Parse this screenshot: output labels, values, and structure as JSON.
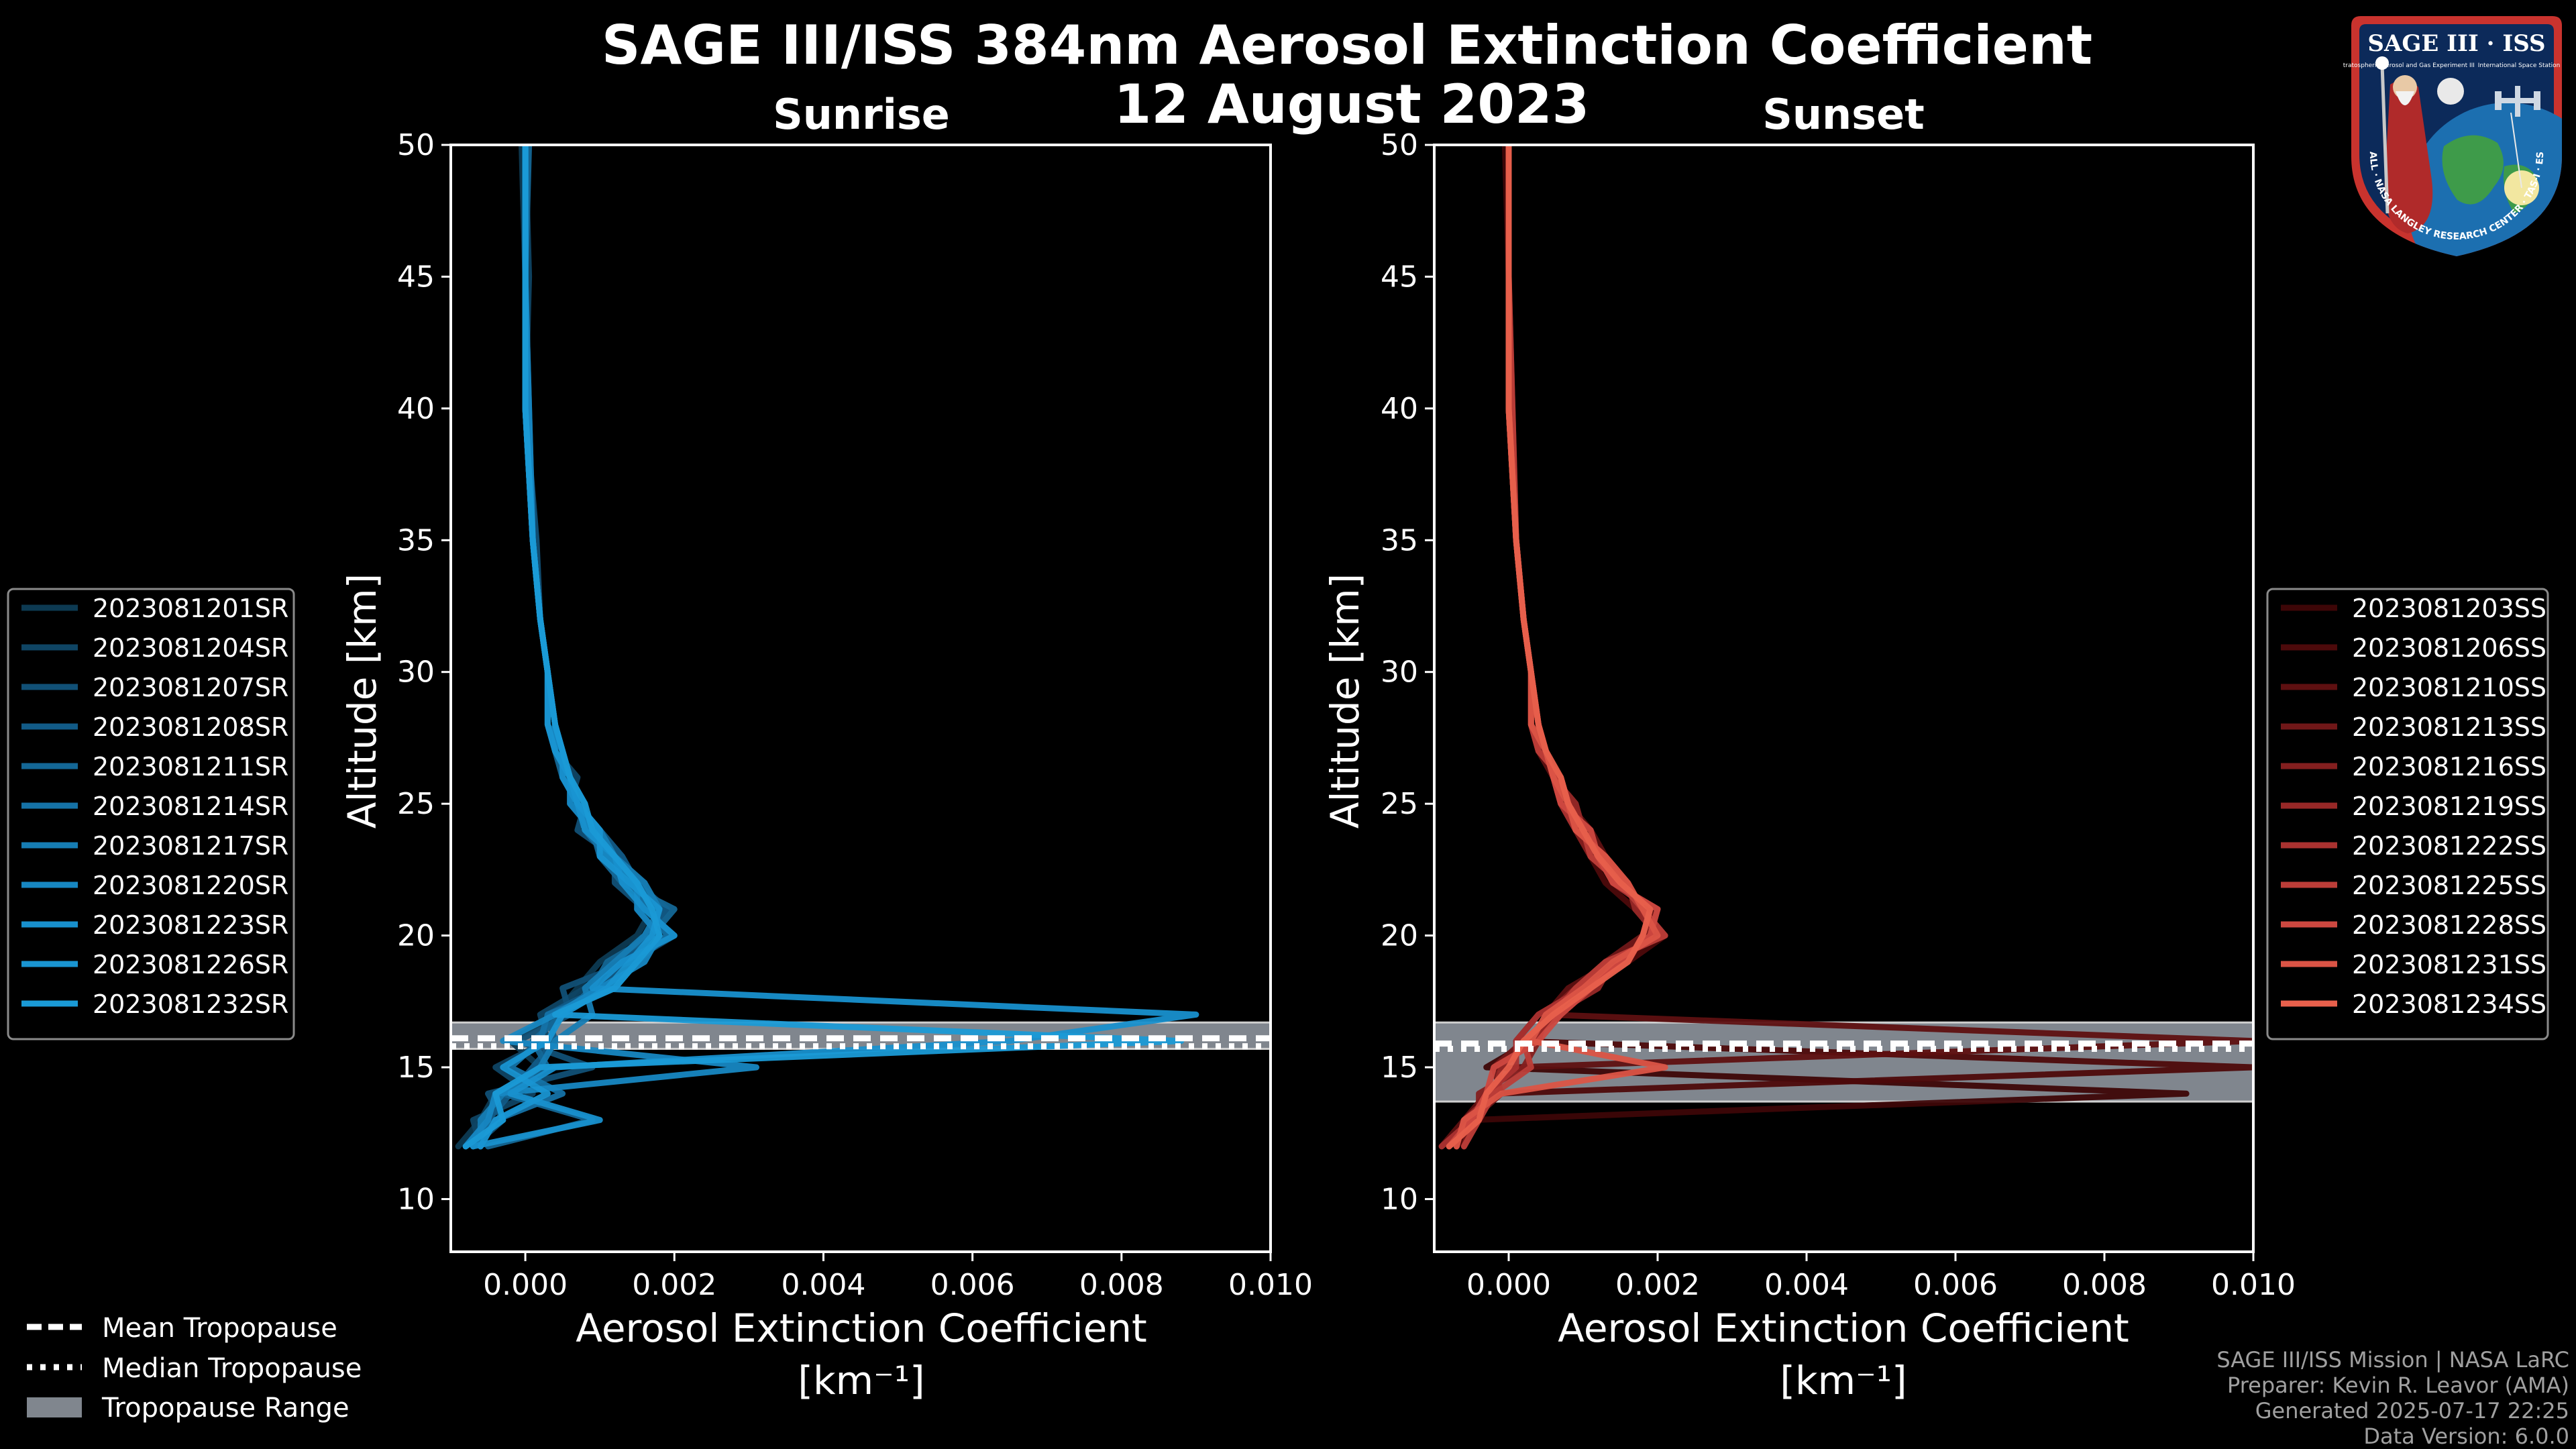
{
  "title": {
    "line1": "SAGE III/ISS 384nm Aerosol Extinction Coefficient",
    "line2": "12 August 2023"
  },
  "logo": {
    "name": "SAGE III · ISS",
    "subtitle": "Stratospheric Aerosol and Gas Experiment III",
    "ring_text": "BALL · NASA LANGLEY RESEARCH CENTER · TAS-I · ESA",
    "station_text": "International Space Station"
  },
  "footer": {
    "mission": "SAGE III/ISS Mission | NASA LaRC",
    "preparer": "Preparer: Kevin R. Leavor (AMA)",
    "generated": "Generated 2025-07-17 22:25",
    "version": "Data Version: 6.0.0"
  },
  "tropopause_legend": {
    "mean": "Mean Tropopause",
    "median": "Median Tropopause",
    "range": "Tropopause Range"
  },
  "colors": {
    "sunrise": "#1a9ad6",
    "sunset": "#e8604c",
    "background": "#000000",
    "range_fill": "#80868e"
  },
  "chart_data": [
    {
      "type": "line",
      "title": "Sunrise",
      "xlabel": "Aerosol Extinction Coefficient",
      "xunit": "[km⁻¹]",
      "ylabel": "Altitude [km]",
      "xlim": [
        -0.001,
        0.01
      ],
      "ylim": [
        8,
        50
      ],
      "xticks": [
        0.0,
        0.002,
        0.004,
        0.006,
        0.008,
        0.01
      ],
      "xtick_labels": [
        "0.000",
        "0.002",
        "0.004",
        "0.006",
        "0.008",
        "0.010"
      ],
      "yticks": [
        10,
        15,
        20,
        25,
        30,
        35,
        40,
        45,
        50
      ],
      "ytick_labels": [
        "10",
        "15",
        "20",
        "25",
        "30",
        "35",
        "40",
        "45",
        "50"
      ],
      "tropopause": {
        "mean": 16.1,
        "median": 15.8,
        "range": [
          15.7,
          16.7
        ]
      },
      "altitudes": [
        12,
        13,
        14,
        15,
        16,
        17,
        18,
        19,
        20,
        21,
        22,
        23,
        24,
        25,
        26,
        27,
        28,
        30,
        32,
        35,
        40,
        45,
        50
      ],
      "series": [
        {
          "name": "2023081201SR",
          "color": "#0d3a52",
          "values": [
            -0.0009,
            -0.0006,
            -0.0004,
            0.0002,
            -0.0002,
            0.0004,
            0.0007,
            0.001,
            0.0015,
            0.0017,
            0.0014,
            0.0011,
            0.0008,
            0.0007,
            0.0006,
            0.0005,
            0.0004,
            0.0003,
            0.0002,
            0.0001,
            0.0,
            0.0,
            -5e-05
          ]
        },
        {
          "name": "2023081204SR",
          "color": "#0f4564",
          "values": [
            -0.0006,
            -0.0007,
            0.0001,
            -0.0004,
            0.0003,
            0.0002,
            0.0008,
            0.0012,
            0.0018,
            0.0015,
            0.0016,
            0.001,
            0.0009,
            0.0006,
            0.0007,
            0.0004,
            0.0003,
            0.0003,
            0.0002,
            0.0001,
            0.0,
            5e-05,
            0.0
          ]
        },
        {
          "name": "2023081207SR",
          "color": "#115076",
          "values": [
            -0.0007,
            -0.0003,
            -0.0005,
            0.0009,
            -0.0001,
            0.0006,
            0.0005,
            0.0014,
            0.002,
            0.0016,
            0.0012,
            0.0012,
            0.0007,
            0.0008,
            0.0005,
            0.0005,
            0.0004,
            0.0003,
            0.0002,
            0.00015,
            0.0,
            0.0,
            0.0
          ]
        },
        {
          "name": "2023081208SR",
          "color": "#125b87",
          "values": [
            -0.0008,
            -0.0005,
            -0.0002,
            0.0001,
            0.0004,
            0.0003,
            0.001,
            0.0013,
            0.0016,
            0.0019,
            0.0015,
            0.0013,
            0.001,
            0.0006,
            0.0006,
            0.0005,
            0.0004,
            0.0003,
            0.0002,
            0.0001,
            5e-05,
            0.0,
            0.0
          ]
        },
        {
          "name": "2023081211SR",
          "color": "#146796",
          "values": [
            -0.0005,
            0.0009,
            -0.0003,
            0.0003,
            0.0001,
            0.0005,
            0.0009,
            0.0011,
            0.0017,
            0.002,
            0.0013,
            0.001,
            0.0009,
            0.0007,
            0.0005,
            0.0004,
            0.0003,
            0.0003,
            0.0002,
            0.0001,
            0.0,
            0.0,
            5e-05
          ]
        },
        {
          "name": "2023081214SR",
          "color": "#1572a6",
          "values": [
            -0.0007,
            -0.0004,
            0.0005,
            -0.0002,
            0.0002,
            0.0003,
            0.0012,
            0.0015,
            0.0019,
            0.0017,
            0.0014,
            0.0011,
            0.0008,
            0.0008,
            0.0006,
            0.0005,
            0.0004,
            0.0003,
            0.0002,
            0.0001,
            0.0,
            0.0,
            0.0
          ]
        },
        {
          "name": "2023081217SR",
          "color": "#167db4",
          "values": [
            -0.0006,
            -0.0006,
            -0.0003,
            0.0002,
            0.0004,
            0.0009,
            0.0008,
            0.0012,
            0.0016,
            0.0018,
            0.0016,
            0.0012,
            0.001,
            0.0007,
            0.0006,
            0.0005,
            0.0003,
            0.0003,
            0.0002,
            0.0001,
            0.0,
            0.0,
            0.0
          ]
        },
        {
          "name": "2023081220SR",
          "color": "#1787c2",
          "values": [
            -0.0008,
            -0.0005,
            -0.0004,
            0.0031,
            -0.0003,
            0.0004,
            0.001,
            0.0016,
            0.0018,
            0.0015,
            0.0015,
            0.0011,
            0.0009,
            0.0006,
            0.0006,
            0.0004,
            0.0004,
            0.0003,
            0.0002,
            0.0001,
            5e-05,
            0.0,
            0.0
          ]
        },
        {
          "name": "2023081223SR",
          "color": "#1890cd",
          "values": [
            -0.0007,
            0.001,
            -0.0002,
            0.0004,
            0.0065,
            0.009,
            0.0009,
            0.0013,
            0.002,
            0.0016,
            0.0013,
            0.0012,
            0.0008,
            0.0007,
            0.0005,
            0.0005,
            0.0004,
            0.0003,
            0.0002,
            0.0001,
            0.0,
            0.0,
            0.0
          ]
        },
        {
          "name": "2023081226SR",
          "color": "#1995d2",
          "values": [
            -0.0006,
            -0.0004,
            0.0003,
            -0.0003,
            0.0003,
            0.0005,
            0.0011,
            0.0014,
            0.0017,
            0.0018,
            0.0014,
            0.001,
            0.001,
            0.0007,
            0.0006,
            0.0004,
            0.0003,
            0.0003,
            0.0002,
            0.0001,
            0.0,
            0.0,
            0.0
          ]
        },
        {
          "name": "2023081232SR",
          "color": "#1a9ad6",
          "values": [
            -0.0008,
            -0.0003,
            -0.0004,
            0.0002,
            0.0088,
            0.0004,
            0.0012,
            0.0015,
            0.0018,
            0.0017,
            0.0015,
            0.0012,
            0.0009,
            0.0008,
            0.0006,
            0.0005,
            0.0004,
            0.0003,
            0.0002,
            0.0001,
            0.0,
            0.0,
            0.0
          ]
        }
      ]
    },
    {
      "type": "line",
      "title": "Sunset",
      "xlabel": "Aerosol Extinction Coefficient",
      "xunit": "[km⁻¹]",
      "ylabel": "Altitude [km]",
      "xlim": [
        -0.001,
        0.01
      ],
      "ylim": [
        8,
        50
      ],
      "xticks": [
        0.0,
        0.002,
        0.004,
        0.006,
        0.008,
        0.01
      ],
      "xtick_labels": [
        "0.000",
        "0.002",
        "0.004",
        "0.006",
        "0.008",
        "0.010"
      ],
      "yticks": [
        10,
        15,
        20,
        25,
        30,
        35,
        40,
        45,
        50
      ],
      "ytick_labels": [
        "10",
        "15",
        "20",
        "25",
        "30",
        "35",
        "40",
        "45",
        "50"
      ],
      "tropopause": {
        "mean": 15.9,
        "median": 15.7,
        "range": [
          13.7,
          16.7
        ]
      },
      "altitudes": [
        12,
        13,
        14,
        15,
        16,
        17,
        18,
        19,
        20,
        21,
        22,
        23,
        24,
        25,
        26,
        27,
        28,
        30,
        32,
        35,
        40,
        45,
        50
      ],
      "series": [
        {
          "name": "2023081203SS",
          "color": "#3d0607",
          "values": [
            -0.0008,
            -0.0005,
            0.0091,
            -0.0003,
            0.0003,
            0.0006,
            0.0009,
            0.0015,
            0.002,
            0.0019,
            0.0015,
            0.0012,
            0.001,
            0.0008,
            0.0007,
            0.0005,
            0.0004,
            0.0003,
            0.0002,
            0.0001,
            0.0,
            0.0,
            -5e-05
          ]
        },
        {
          "name": "2023081206SS",
          "color": "#4d0a0b",
          "values": [
            -0.0007,
            -0.0004,
            -0.0002,
            0.01,
            0.0001,
            0.0004,
            0.001,
            0.0016,
            0.0021,
            0.0017,
            0.0013,
            0.0011,
            0.0009,
            0.0007,
            0.0006,
            0.0005,
            0.0003,
            0.0003,
            0.0002,
            0.0001,
            0.0,
            0.0,
            0.0
          ]
        },
        {
          "name": "2023081210SS",
          "color": "#5e1011",
          "values": [
            -0.0009,
            -0.0006,
            -0.0003,
            0.0001,
            0.01,
            0.0005,
            0.0008,
            0.0014,
            0.0019,
            0.0018,
            0.0016,
            0.0013,
            0.0011,
            0.0008,
            0.0006,
            0.0004,
            0.0004,
            0.0003,
            0.0002,
            0.0001,
            0.0,
            0.0,
            0.0
          ]
        },
        {
          "name": "2023081213SS",
          "color": "#701718",
          "values": [
            -0.0006,
            -0.0005,
            -0.0001,
            -0.0002,
            0.0002,
            0.0007,
            0.0011,
            0.0013,
            0.0018,
            0.002,
            0.0014,
            0.0012,
            0.001,
            0.0007,
            0.0006,
            0.0005,
            0.0004,
            0.0003,
            0.0002,
            0.0001,
            5e-05,
            0.0,
            0.0
          ]
        },
        {
          "name": "2023081216SS",
          "color": "#841f1f",
          "values": [
            -0.0008,
            -0.0004,
            -0.0004,
            0.0002,
            0.0004,
            0.0005,
            0.0009,
            0.0015,
            0.0019,
            0.0018,
            0.0015,
            0.0011,
            0.0009,
            0.0008,
            0.0007,
            0.0004,
            0.0003,
            0.0003,
            0.0002,
            0.0001,
            0.0,
            0.0,
            0.0
          ]
        },
        {
          "name": "2023081219SS",
          "color": "#972827",
          "values": [
            -0.0007,
            -0.0006,
            -0.0002,
            -0.0001,
            0.0003,
            0.0006,
            0.0012,
            0.0014,
            0.002,
            0.0017,
            0.0016,
            0.0012,
            0.001,
            0.0009,
            0.0006,
            0.0005,
            0.0004,
            0.0003,
            0.0002,
            0.0001,
            0.0,
            0.0,
            0.0
          ]
        },
        {
          "name": "2023081222SS",
          "color": "#aa3230",
          "values": [
            -0.0009,
            -0.0005,
            -0.0003,
            0.0001,
            0.0001,
            0.0004,
            0.001,
            0.0016,
            0.0018,
            0.0019,
            0.0014,
            0.0013,
            0.0009,
            0.0007,
            0.0006,
            0.0005,
            0.0004,
            0.0003,
            0.0002,
            0.0001,
            0.0,
            0.0,
            0.0
          ]
        },
        {
          "name": "2023081225SS",
          "color": "#bc3d38",
          "values": [
            -0.0006,
            -0.0004,
            -0.0002,
            0.0003,
            0.0002,
            0.0006,
            0.0009,
            0.0013,
            0.0021,
            0.0018,
            0.0015,
            0.0011,
            0.001,
            0.0008,
            0.0007,
            0.0004,
            0.0003,
            0.0003,
            0.0002,
            0.0001,
            5e-05,
            0.0,
            0.0
          ]
        },
        {
          "name": "2023081228SS",
          "color": "#cd4840",
          "values": [
            -0.0008,
            -0.0005,
            -0.0003,
            -0.0002,
            0.0004,
            0.0007,
            0.0011,
            0.0015,
            0.0019,
            0.002,
            0.0014,
            0.0012,
            0.0011,
            0.0007,
            0.0006,
            0.0005,
            0.0004,
            0.0003,
            0.0002,
            0.0001,
            0.0,
            0.0,
            0.0
          ]
        },
        {
          "name": "2023081231SS",
          "color": "#db5446",
          "values": [
            -0.0007,
            -0.0006,
            -0.0001,
            0.0021,
            0.0003,
            0.0005,
            0.001,
            0.0014,
            0.002,
            0.0018,
            0.0016,
            0.0013,
            0.0009,
            0.0008,
            0.0006,
            0.0005,
            0.0003,
            0.0003,
            0.0002,
            0.0001,
            0.0,
            0.0,
            0.0
          ]
        },
        {
          "name": "2023081234SS",
          "color": "#e8604c",
          "values": [
            -0.0008,
            -0.0004,
            -0.0003,
            0.0,
            0.0002,
            0.0006,
            0.0011,
            0.0016,
            0.0018,
            0.0019,
            0.0015,
            0.0012,
            0.001,
            0.0008,
            0.0007,
            0.0005,
            0.0004,
            0.0003,
            0.0002,
            0.0001,
            0.0,
            0.0,
            0.0
          ]
        }
      ]
    }
  ]
}
